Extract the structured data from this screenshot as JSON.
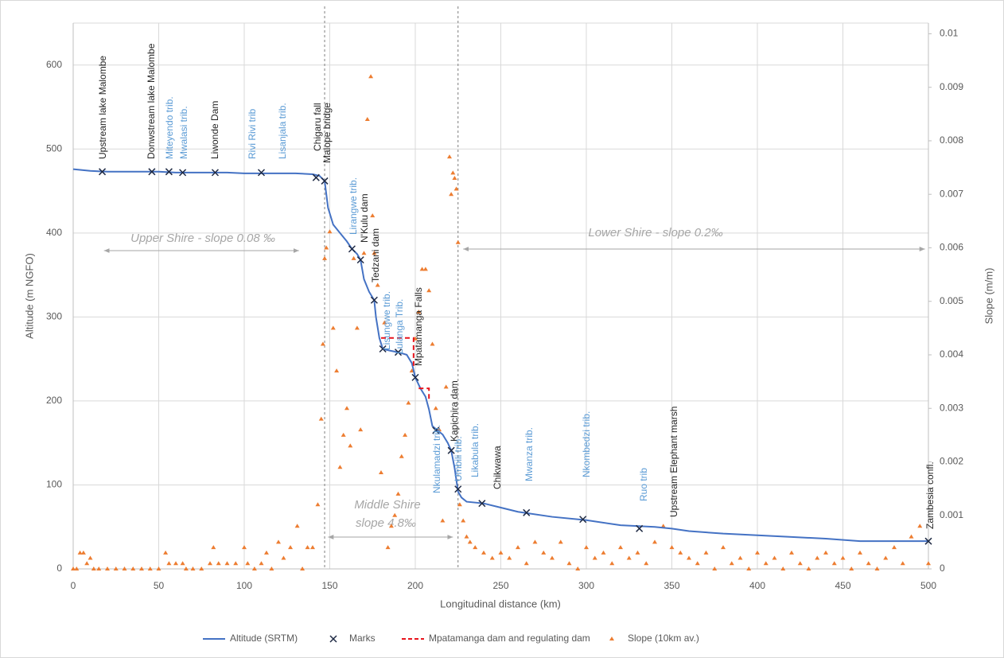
{
  "chart_data": {
    "type": "combo",
    "xlabel": "Longitudinal distance (km)",
    "ylabel": "Altitude (m NGFO)",
    "y2label": "Slope (m/m)",
    "xlim": [
      0,
      500
    ],
    "xticks": [
      0,
      50,
      100,
      150,
      200,
      250,
      300,
      350,
      400,
      450,
      500
    ],
    "ylim": [
      0,
      650
    ],
    "yticks": [
      0,
      100,
      200,
      300,
      400,
      500,
      600
    ],
    "y2lim": [
      0,
      0.0102
    ],
    "y2ticks": [
      0,
      0.001,
      0.002,
      0.003,
      0.004,
      0.005,
      0.006,
      0.007,
      0.008,
      0.009,
      0.01
    ],
    "grid": true,
    "series": [
      {
        "name": "Altitude (SRTM)",
        "kind": "line",
        "color": "#4472c4",
        "x": [
          0,
          10,
          20,
          30,
          40,
          50,
          60,
          70,
          80,
          90,
          100,
          110,
          120,
          130,
          140,
          144,
          147,
          149,
          152,
          156,
          160,
          163,
          166,
          168,
          170,
          173,
          176,
          177,
          179,
          181,
          185,
          190,
          195,
          198,
          200,
          203,
          206,
          208,
          210,
          213,
          216,
          219,
          221,
          223,
          225,
          227,
          230,
          240,
          260,
          280,
          300,
          320,
          340,
          350,
          360,
          380,
          400,
          420,
          440,
          460,
          480,
          500
        ],
        "values": [
          476,
          474,
          473,
          473,
          473,
          473,
          472,
          472,
          472,
          472,
          471,
          471,
          471,
          471,
          470,
          468,
          462,
          430,
          410,
          400,
          390,
          381,
          375,
          368,
          345,
          330,
          320,
          300,
          275,
          262,
          260,
          258,
          255,
          245,
          228,
          215,
          205,
          190,
          170,
          165,
          160,
          150,
          141,
          120,
          92,
          85,
          80,
          78,
          68,
          62,
          58,
          52,
          50,
          48,
          45,
          42,
          40,
          38,
          36,
          33,
          33,
          33
        ]
      },
      {
        "name": "Marks",
        "kind": "marks",
        "color": "#1f2a44",
        "x": [
          17,
          46,
          56,
          64,
          83,
          110,
          142,
          147,
          163,
          168,
          176,
          181,
          190,
          200,
          212,
          221,
          225,
          239,
          265,
          298,
          331,
          500
        ],
        "values": [
          473,
          473,
          473,
          472,
          472,
          472,
          466,
          462,
          381,
          368,
          320,
          262,
          258,
          228,
          165,
          141,
          95,
          78,
          67,
          59,
          48,
          33
        ]
      },
      {
        "name": "Mpatamanga dam and regulating dam",
        "kind": "dashed",
        "color": "#e8141c",
        "x": [
          180,
          199,
          199,
          null,
          202,
          208,
          208
        ],
        "values": [
          275,
          275,
          240,
          null,
          215,
          215,
          200
        ]
      },
      {
        "name": "Slope (10km av.)",
        "kind": "scatter",
        "axis": "y2",
        "color": "#ed7d31",
        "x": [
          0,
          2,
          4,
          6,
          8,
          10,
          12,
          15,
          20,
          25,
          30,
          35,
          40,
          45,
          50,
          54,
          56,
          60,
          64,
          66,
          70,
          75,
          80,
          82,
          85,
          90,
          95,
          100,
          102,
          106,
          110,
          113,
          116,
          120,
          123,
          127,
          131,
          134,
          137,
          140,
          143,
          145,
          146,
          147,
          148,
          150,
          152,
          154,
          156,
          158,
          160,
          162,
          164,
          166,
          168,
          170,
          172,
          174,
          175,
          176,
          178,
          180,
          182,
          184,
          186,
          188,
          190,
          192,
          194,
          196,
          198,
          200,
          202,
          204,
          206,
          208,
          210,
          212,
          214,
          216,
          218,
          220,
          221,
          222,
          223,
          224,
          225,
          226,
          228,
          230,
          232,
          235,
          240,
          245,
          250,
          255,
          260,
          265,
          270,
          275,
          280,
          285,
          290,
          295,
          300,
          305,
          310,
          315,
          320,
          325,
          330,
          335,
          340,
          345,
          350,
          355,
          360,
          365,
          370,
          375,
          380,
          385,
          390,
          395,
          400,
          405,
          410,
          415,
          420,
          425,
          430,
          435,
          440,
          445,
          450,
          455,
          460,
          465,
          470,
          475,
          480,
          485,
          490,
          495,
          500
        ],
        "values": [
          0,
          0,
          0.0003,
          0.0003,
          0.0001,
          0.0002,
          0,
          0,
          0,
          0,
          0,
          0,
          0,
          0,
          0,
          0.0003,
          0.0001,
          0.0001,
          0.0001,
          0,
          0,
          0,
          0.0001,
          0.0004,
          0.0001,
          0.0001,
          0.0001,
          0.0004,
          0.0001,
          0,
          0.0001,
          0.0003,
          0,
          0.0005,
          0.0002,
          0.0004,
          0.0008,
          0,
          0.0004,
          0.0004,
          0.0012,
          0.0028,
          0.0042,
          0.0058,
          0.006,
          0.0063,
          0.0045,
          0.0037,
          0.0019,
          0.0025,
          0.003,
          0.0023,
          0.0058,
          0.0045,
          0.0026,
          0.0059,
          0.0084,
          0.0092,
          0.0066,
          0.0059,
          0.0053,
          0.0018,
          0.0046,
          0.0004,
          0.0008,
          0.001,
          0.0014,
          0.0021,
          0.0025,
          0.0031,
          0.0037,
          0.0043,
          0.0048,
          0.0056,
          0.0056,
          0.0052,
          0.0042,
          0.003,
          0.0026,
          0.0009,
          0.0034,
          0.0077,
          0.007,
          0.0074,
          0.0073,
          0.0071,
          0.0061,
          0.0012,
          0.0009,
          0.0006,
          0.0005,
          0.0004,
          0.0003,
          0.0002,
          0.0003,
          0.0002,
          0.0004,
          0.0001,
          0.0005,
          0.0003,
          0.0002,
          0.0005,
          0.0001,
          0,
          0.0004,
          0.0002,
          0.0003,
          0.0001,
          0.0004,
          0.0002,
          0.0003,
          0.0001,
          0.0005,
          0.0008,
          0.0004,
          0.0003,
          0.0002,
          0.0001,
          0.0003,
          0,
          0.0004,
          0.0001,
          0.0002,
          0,
          0.0003,
          0.0001,
          0.0002,
          0,
          0.0003,
          0.0001,
          0,
          0.0002,
          0.0003,
          0.0001,
          0.0002,
          0,
          0.0003,
          0.0001,
          0,
          0.0002,
          0.0004,
          0.0001,
          0.0006,
          0.0008,
          0.0001
        ]
      }
    ],
    "annotations": [
      {
        "text": "Upstream lake Malombe",
        "color": "#262626"
      },
      {
        "text": "Donwstream lake Malombe",
        "color": "#262626"
      },
      {
        "text": "Miteyendo trib.",
        "color": "#5b9bd5"
      },
      {
        "text": "Mwalasi trib.",
        "color": "#5b9bd5"
      },
      {
        "text": "Liwonde Dam",
        "color": "#262626"
      },
      {
        "text": "Rivi Rivi trib",
        "color": "#5b9bd5"
      },
      {
        "text": "Lisanjala trib.",
        "color": "#5b9bd5"
      },
      {
        "text": "Chigaru fall",
        "color": "#262626"
      },
      {
        "text": "Malope bridge",
        "color": "#262626"
      },
      {
        "text": "Lirangwe trib.",
        "color": "#5b9bd5"
      },
      {
        "text": "N'Kulu dam",
        "color": "#262626"
      },
      {
        "text": "Tedzani dam",
        "color": "#262626"
      },
      {
        "text": "Lisungwe trib.",
        "color": "#5b9bd5"
      },
      {
        "text": "Lulanga Trib.",
        "color": "#5b9bd5"
      },
      {
        "text": "Mpatamanga Falls",
        "color": "#262626"
      },
      {
        "text": "Nkulamadzi trib.",
        "color": "#5b9bd5"
      },
      {
        "text": "Kapichira dam",
        "color": "#262626"
      },
      {
        "text": "Umbili trib.",
        "color": "#5b9bd5"
      },
      {
        "text": "Likabula trib.",
        "color": "#5b9bd5"
      },
      {
        "text": "Chikwawa",
        "color": "#262626"
      },
      {
        "text": "Mwanza trib.",
        "color": "#5b9bd5"
      },
      {
        "text": "Nkombedzi trib.",
        "color": "#5b9bd5"
      },
      {
        "text": "Ruo trib",
        "color": "#5b9bd5"
      },
      {
        "text": "Upstream Elephant marsh",
        "color": "#262626"
      },
      {
        "text": "Zambesia confl.",
        "color": "#262626"
      }
    ],
    "regions": [
      "Upper Shire - slope 0.08 ‰",
      "Lower Shire - slope 0.2‰",
      "Middle Shire",
      "slope 4.8‰"
    ]
  }
}
